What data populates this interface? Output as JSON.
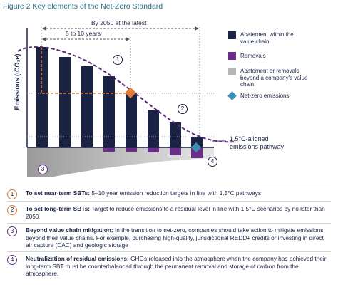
{
  "title": "Figure 2 Key elements of the Net-Zero Standard",
  "chart": {
    "y_axis_label": "Emissions (tCO₂e)",
    "span_long": "By 2050 at the latest",
    "span_short": "5 to 10 years",
    "pathway_label": "1.5°C-aligned emissions pathway",
    "markers": [
      "1",
      "2",
      "3",
      "4"
    ]
  },
  "legend": [
    "Abatement within the value chain",
    "Removals",
    "Abatement or removals beyond a company's value chain",
    "Net-zero emissions"
  ],
  "items": [
    {
      "number": "1",
      "heading": "To set near-term SBTs:",
      "text": "5–10 year emission reduction targets in line with 1.5°C pathways"
    },
    {
      "number": "2",
      "heading": "To set long-term SBTs:",
      "text": "Target to reduce emissions to a residual level in line with 1.5°C scenarios by no later than 2050"
    },
    {
      "number": "3",
      "heading": "Beyond value chain mitigation:",
      "text": "In the transition to net-zero, companies should take action to mitigate emissions beyond their value chains. For example, purchasing high-quality, jurisdictional REDD+ credits or investing in direct air capture (DAC) and geologic storage"
    },
    {
      "number": "4",
      "heading": "Neutralization of residual emissions:",
      "text": "GHGs released into the atmosphere when the company has achieved their long-term SBT must be counterbalanced through the permanent removal and storage of carbon from the atmosphere."
    }
  ]
}
